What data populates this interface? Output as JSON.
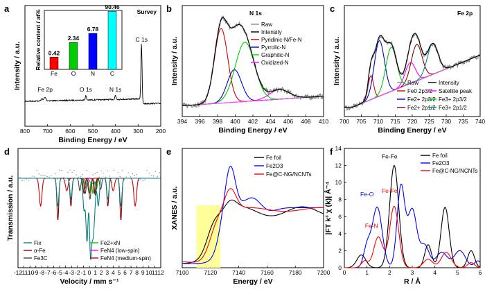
{
  "chart_data": [
    {
      "panel": "a",
      "type": "line",
      "title": "Survey",
      "xlabel": "Binding Energy / eV",
      "ylabel": "Intensity / a.u.",
      "xlim": [
        800,
        200
      ],
      "xticks": [
        800,
        700,
        600,
        500,
        400,
        300,
        200
      ],
      "peak_labels": [
        {
          "text": "Fe 2p",
          "x": 711
        },
        {
          "text": "O 1s",
          "x": 531
        },
        {
          "text": "N 1s",
          "x": 400
        },
        {
          "text": "C 1s",
          "x": 285
        }
      ],
      "inset": {
        "type": "bar",
        "ylabel": "Relative content / at%",
        "categories": [
          "Fe",
          "O",
          "N",
          "C"
        ],
        "values": [
          0.42,
          2.34,
          6.78,
          90.46
        ],
        "value_labels": [
          "0.42",
          "2.34",
          "6.78",
          "90.46"
        ],
        "colors": [
          "#ff0000",
          "#00cc00",
          "#0000ff",
          "#00ffff"
        ],
        "ylim": [
          0.1,
          100
        ],
        "scale": "log"
      }
    },
    {
      "panel": "b",
      "type": "line",
      "title": "N 1s",
      "xlabel": "Binding Energy / eV",
      "ylabel": "Intensity / a.u.",
      "xlim": [
        394,
        410
      ],
      "xticks": [
        394,
        396,
        398,
        400,
        402,
        404,
        406,
        408,
        410
      ],
      "series": [
        {
          "name": "Raw",
          "color": "#888888"
        },
        {
          "name": "Intensity",
          "color": "#000000"
        },
        {
          "name": "Pyridinic-N/Fe-N",
          "color": "#cc0000",
          "center": 398.4,
          "width": 0.75,
          "height": 0.78
        },
        {
          "name": "Pyrrolic-N",
          "color": "#0000cc",
          "center": 399.9,
          "width": 0.8,
          "height": 0.34
        },
        {
          "name": "Graphitic-N",
          "color": "#00cc00",
          "center": 401.1,
          "width": 1.1,
          "height": 0.62
        },
        {
          "name": "Oxidized-N",
          "color": "#ff00ff",
          "center": 405.0,
          "width": 1.1,
          "height": 0.1
        }
      ]
    },
    {
      "panel": "c",
      "type": "line",
      "title": "Fe 2p",
      "xlabel": "Binding Energy / eV",
      "ylabel": "Intensity / a.u.",
      "xlim": [
        700,
        740
      ],
      "xticks": [
        700,
        705,
        710,
        715,
        720,
        725,
        730,
        735,
        740
      ],
      "series": [
        {
          "name": "Raw",
          "color": "#888888"
        },
        {
          "name": "Intensity",
          "color": "#000000"
        },
        {
          "name": "Fe0 2p3/2",
          "color": "#cc0000",
          "center": 707.8,
          "width": 0.8,
          "height": 0.25
        },
        {
          "name": "Fe2+ 2p3/2",
          "color": "#0000cc",
          "center": 710.3,
          "width": 1.5,
          "height": 0.58
        },
        {
          "name": "Fe2+ 2p1/2",
          "color": "#880000",
          "center": 721.3,
          "width": 1.6,
          "height": 0.38
        },
        {
          "name": "Satellite peak",
          "color": "#ff00ff",
          "center": 719.4,
          "width": 1.5,
          "height": 0.22
        },
        {
          "name": "Fe3+ 2p3/2",
          "color": "#00cc00",
          "center": 713.8,
          "width": 1.6,
          "height": 0.46
        },
        {
          "name": "Fe3+ 2p1/2",
          "color": "#008888",
          "center": 726.0,
          "width": 1.6,
          "height": 0.32
        }
      ]
    },
    {
      "panel": "d",
      "type": "line",
      "xlabel": "Velocity / mm s⁻¹",
      "ylabel": "Transmission / a.u.",
      "xlim": [
        -12,
        12
      ],
      "xticks": [
        -12,
        -11,
        -10,
        -9,
        -8,
        -7,
        -6,
        -5,
        -4,
        -3,
        -2,
        -1,
        0,
        1,
        2,
        3,
        4,
        5,
        6,
        7,
        8,
        9,
        10,
        11,
        12
      ],
      "series": [
        {
          "name": "Fix",
          "color": "#008080"
        },
        {
          "name": "α-Fe",
          "color": "#880000"
        },
        {
          "name": "Fe3C",
          "color": "#444444"
        },
        {
          "name": "Fe2+xN",
          "color": "#00cc00"
        },
        {
          "name": "FeN4 (low-spin)",
          "color": "#ff00ff"
        },
        {
          "name": "FeN4 (medium-spin)",
          "color": "#cc0000"
        }
      ]
    },
    {
      "panel": "e",
      "type": "line",
      "xlabel": "Energy / eV",
      "ylabel": "XANES / a.u.",
      "xlim": [
        7100,
        7200
      ],
      "xticks": [
        7100,
        7120,
        7140,
        7160,
        7180,
        7200
      ],
      "highlight": [
        7110,
        7127
      ],
      "series": [
        {
          "name": "Fe foil",
          "color": "#000000"
        },
        {
          "name": "Fe2O3",
          "color": "#0000ff"
        },
        {
          "name": "Fe@C-NG/NCNTs",
          "color": "#ff0000"
        }
      ]
    },
    {
      "panel": "f",
      "type": "line",
      "xlabel": "R / Å",
      "ylabel": "|FT k³ χ (k)| Å⁻⁴",
      "xlim": [
        0,
        6
      ],
      "ylim": [
        0,
        14
      ],
      "xticks": [
        0,
        1,
        2,
        3,
        4,
        5,
        6
      ],
      "yticks": [
        0,
        2,
        4,
        6,
        8,
        10,
        12,
        14
      ],
      "annotations": [
        {
          "text": "Fe-Fe",
          "color": "#000000",
          "x": 2.0,
          "y": 12.8
        },
        {
          "text": "Fe-O",
          "color": "#0000ff",
          "x": 1.0,
          "y": 8.4
        },
        {
          "text": "Fe-Fe",
          "color": "#ff0000",
          "x": 2.0,
          "y": 8.8
        },
        {
          "text": "Fe-N",
          "color": "#ff0000",
          "x": 1.2,
          "y": 4.7
        }
      ],
      "series": [
        {
          "name": "Fe foil",
          "color": "#000000",
          "peaks": [
            [
              2.2,
              12.0,
              0.2
            ],
            [
              3.7,
              2.7,
              0.15
            ],
            [
              4.45,
              7.1,
              0.18
            ],
            [
              5.6,
              2.0,
              0.15
            ],
            [
              0.75,
              1.5,
              0.2
            ]
          ]
        },
        {
          "name": "Fe2O3",
          "color": "#0000ff",
          "peaks": [
            [
              1.45,
              7.1,
              0.22
            ],
            [
              1.0,
              2.3,
              0.15
            ],
            [
              2.5,
              9.5,
              0.17
            ],
            [
              3.0,
              6.8,
              0.2
            ],
            [
              3.55,
              2.6,
              0.2
            ],
            [
              4.3,
              1.8,
              0.25
            ],
            [
              5.1,
              2.0,
              0.25
            ],
            [
              5.9,
              0.8,
              0.15
            ]
          ]
        },
        {
          "name": "Fe@C-NG/NCNTs",
          "color": "#ff0000",
          "peaks": [
            [
              1.5,
              3.6,
              0.2
            ],
            [
              2.2,
              7.2,
              0.2
            ],
            [
              0.9,
              0.8,
              0.15
            ],
            [
              3.7,
              1.0,
              0.2
            ],
            [
              4.5,
              1.8,
              0.22
            ],
            [
              5.6,
              0.6,
              0.15
            ]
          ]
        }
      ]
    }
  ]
}
